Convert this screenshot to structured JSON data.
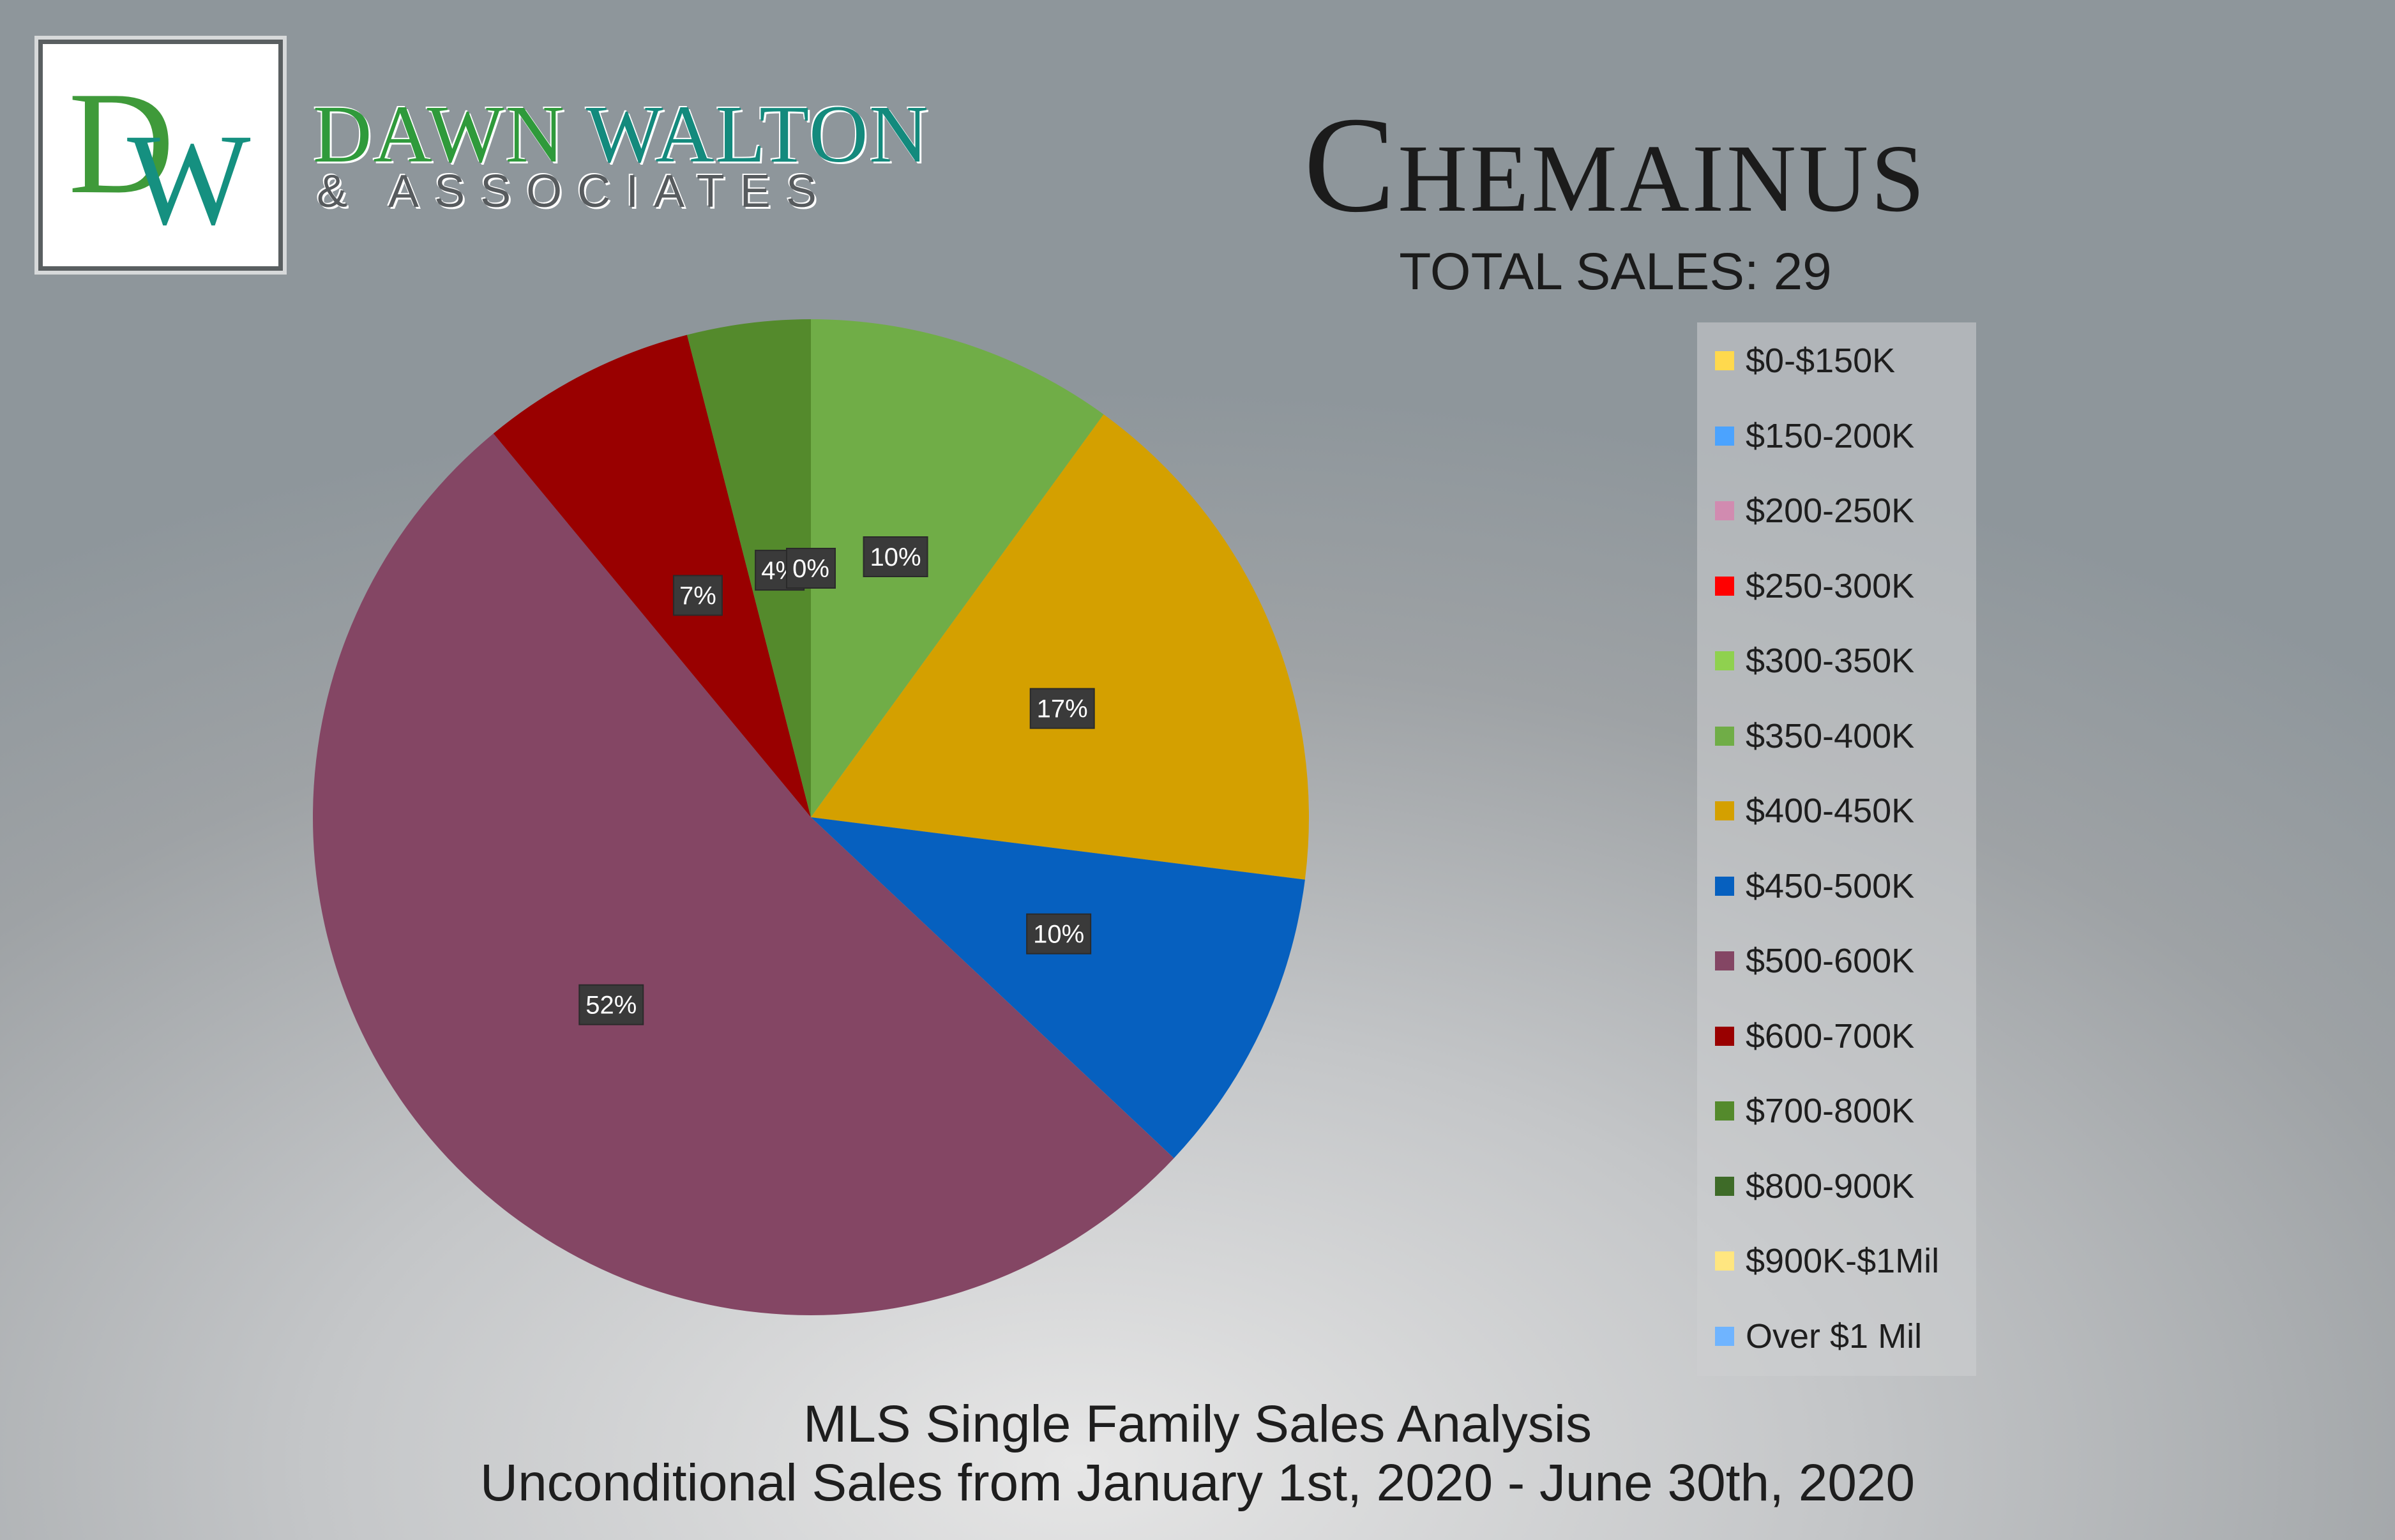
{
  "logo": {
    "letter_d": "D",
    "letter_w": "W"
  },
  "brand": {
    "name_part1": "DAWN",
    "name_part2": "WALTON",
    "tagline": "& ASSOCIATES"
  },
  "colors": {
    "brand_green": "#2f9a3b",
    "brand_teal": "#138a7d",
    "label_box": "#3a3a3a"
  },
  "chart_data": {
    "type": "pie",
    "title": "Chemainus",
    "subtitle": "TOTAL SALES: 29",
    "footer_line1": "MLS Single Family Sales Analysis",
    "footer_line2": "Unconditional Sales from January 1st, 2020 - June 30th, 2020",
    "legend_position": "right",
    "slices": [
      {
        "label": "$0-$150K",
        "value": 0,
        "color": "#ffd94d"
      },
      {
        "label": "$150-200K",
        "value": 0,
        "color": "#4ba3ff"
      },
      {
        "label": "$200-250K",
        "value": 0,
        "color": "#d18bb0"
      },
      {
        "label": "$250-300K",
        "value": 0,
        "color": "#ff0000"
      },
      {
        "label": "$300-350K",
        "value": 0,
        "color": "#8fd14f"
      },
      {
        "label": "$350-400K",
        "value": 10,
        "display": "10%",
        "color": "#70ad47"
      },
      {
        "label": "$400-450K",
        "value": 17,
        "display": "17%",
        "color": "#d4a000"
      },
      {
        "label": "$450-500K",
        "value": 10,
        "display": "10%",
        "color": "#0660bf"
      },
      {
        "label": "$500-600K",
        "value": 52,
        "display": "52%",
        "color": "#844664"
      },
      {
        "label": "$600-700K",
        "value": 7,
        "display": "7%",
        "color": "#990000"
      },
      {
        "label": "$700-800K",
        "value": 4,
        "display": "4%",
        "color": "#548a2c"
      },
      {
        "label": "$800-900K",
        "value": 0,
        "display": "0%",
        "color": "#3e6b28"
      },
      {
        "label": "$900K-$1Mil",
        "value": 0,
        "color": "#ffe680"
      },
      {
        "label": "Over $1 Mil",
        "value": 0,
        "color": "#6fb4ff"
      }
    ]
  }
}
